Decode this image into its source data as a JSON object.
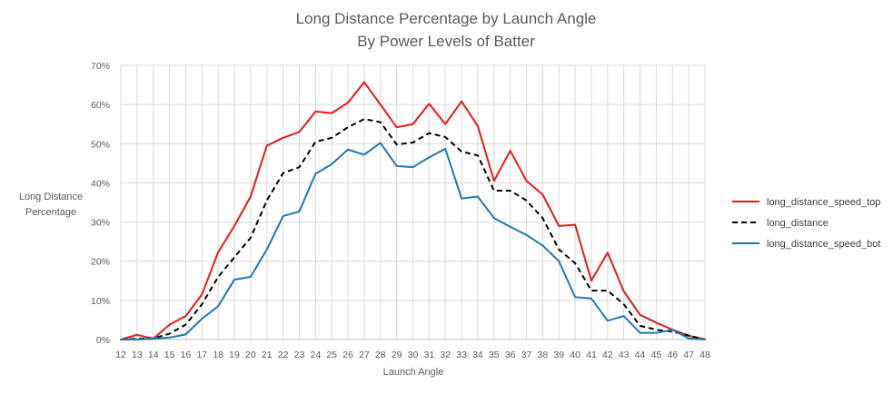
{
  "chart_data": {
    "type": "line",
    "title": [
      "Long Distance Percentage by Launch Angle",
      "By Power Levels of Batter"
    ],
    "xlabel": "Launch Angle",
    "ylabel": [
      "Long Distance",
      "Percentage"
    ],
    "ylim": [
      0,
      70
    ],
    "yticks": [
      "0%",
      "10%",
      "20%",
      "30%",
      "40%",
      "50%",
      "60%",
      "70%"
    ],
    "x": [
      12,
      13,
      14,
      15,
      16,
      17,
      18,
      19,
      20,
      21,
      22,
      23,
      24,
      25,
      26,
      27,
      28,
      29,
      30,
      31,
      32,
      33,
      34,
      35,
      36,
      37,
      38,
      39,
      40,
      41,
      42,
      43,
      44,
      45,
      46,
      47,
      48
    ],
    "grid": "both",
    "legend_position": "right",
    "series": [
      {
        "name": "long_distance_speed_top",
        "color": "#e41a1c",
        "dash": "solid",
        "values": [
          0,
          1.2,
          0.2,
          3.8,
          6,
          11.5,
          22.3,
          29,
          36.5,
          49.5,
          51.5,
          53,
          58.2,
          57.8,
          60.5,
          65.7,
          60,
          54.2,
          55,
          60.2,
          55,
          60.8,
          54.5,
          40.5,
          48.2,
          40.5,
          37,
          29,
          29.3,
          15,
          22.2,
          12.3,
          6.3,
          4.3,
          2.5,
          1,
          0
        ]
      },
      {
        "name": "long_distance",
        "color": "#000000",
        "dash": "dashed",
        "values": [
          0,
          0.2,
          0.3,
          1.5,
          3.8,
          9,
          16,
          21,
          26,
          35.5,
          42.5,
          44,
          50.5,
          51.5,
          54.2,
          56.3,
          55.5,
          49.8,
          50.3,
          52.7,
          51.7,
          48,
          47,
          38,
          38,
          35.5,
          31,
          23,
          19.5,
          12.5,
          12.5,
          9,
          3.5,
          2.5,
          2,
          1,
          0
        ]
      },
      {
        "name": "long_distance_speed_bot",
        "color": "#1f77b4",
        "dash": "solid",
        "values": [
          0,
          0,
          0.2,
          0.5,
          1.3,
          5.3,
          8.5,
          15.3,
          16,
          23,
          31.5,
          32.7,
          42.3,
          44.8,
          48.5,
          47.2,
          50.2,
          44.3,
          44,
          46.5,
          48.7,
          36,
          36.5,
          31,
          28.8,
          26.7,
          24,
          20,
          10.8,
          10.5,
          4.8,
          6,
          1.7,
          1.7,
          2.5,
          0.3,
          0
        ]
      }
    ]
  }
}
